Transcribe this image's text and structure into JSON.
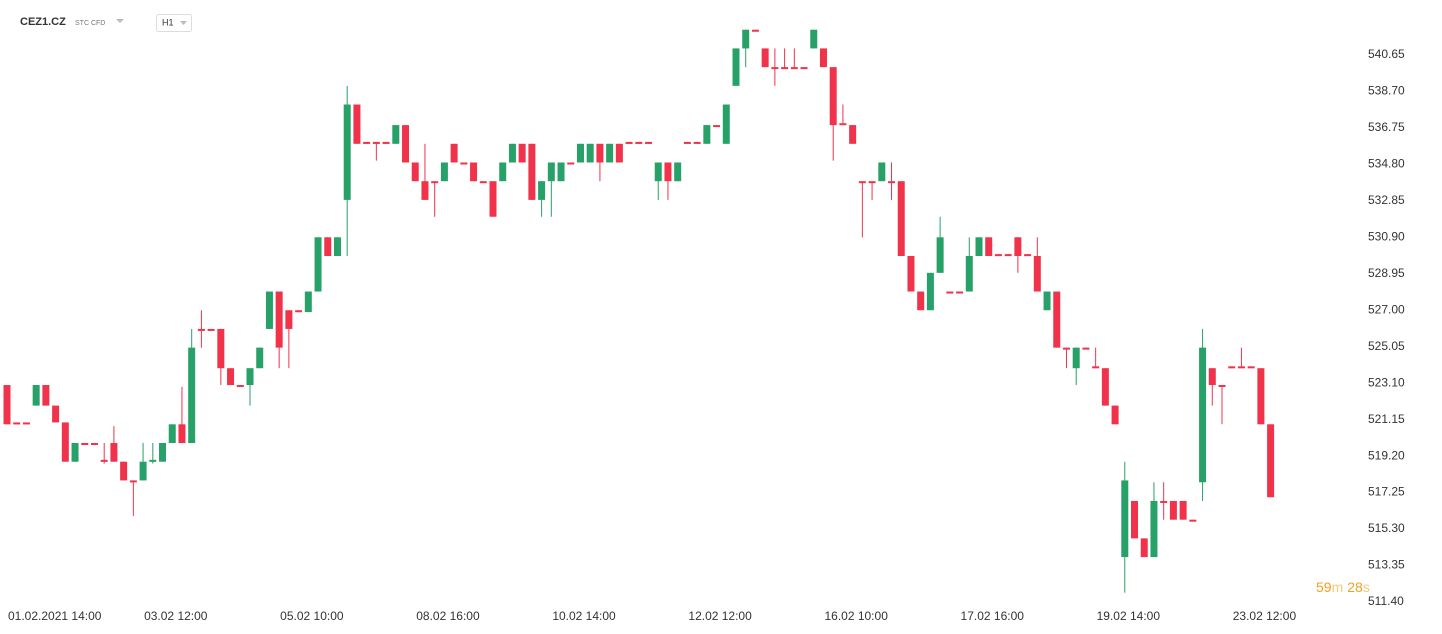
{
  "header": {
    "symbol": "CEZ1.CZ",
    "instrument": "STC CFD",
    "interval": "H1"
  },
  "countdown": {
    "minutes": "59",
    "minutes_unit": "m",
    "seconds": "28",
    "seconds_unit": "s"
  },
  "chart_data": {
    "type": "candlestick",
    "up_color": "#27a168",
    "down_color": "#f0334b",
    "grid": false,
    "ylim": [
      510.97,
      542.52
    ],
    "yticks": [
      {
        "value": 511.4,
        "label": "511.40"
      },
      513.35,
      {
        "value": 515.3,
        "label": "515.30"
      },
      517.25,
      {
        "value": 519.2,
        "label": "519.20"
      },
      521.15,
      {
        "value": 523.1,
        "label": "523.10"
      },
      525.05,
      {
        "value": 527,
        "label": "527.00"
      },
      528.95,
      {
        "value": 530.9,
        "label": "530.90"
      },
      532.85,
      {
        "value": 534.8,
        "label": "534.80"
      },
      536.75,
      {
        "value": 538.7,
        "label": "538.70"
      },
      540.65
    ],
    "categories": [
      "01.02.2021 14:00",
      null,
      null,
      null,
      null,
      null,
      null,
      null,
      null,
      null,
      null,
      null,
      null,
      null,
      "03.02 12:00",
      null,
      null,
      null,
      null,
      null,
      null,
      null,
      null,
      null,
      null,
      null,
      null,
      null,
      "05.02 10:00",
      null,
      null,
      null,
      null,
      null,
      null,
      null,
      null,
      null,
      null,
      null,
      null,
      null,
      "08.02 16:00",
      null,
      null,
      null,
      null,
      null,
      null,
      null,
      null,
      null,
      null,
      null,
      null,
      null,
      "10.02 14:00",
      null,
      null,
      null,
      null,
      null,
      null,
      null,
      null,
      null,
      null,
      null,
      null,
      null,
      "12.02 12:00",
      null,
      null,
      null,
      null,
      null,
      null,
      null,
      null,
      null,
      null,
      null,
      null,
      null,
      "16.02 10:00",
      null,
      null,
      null,
      null,
      null,
      null,
      null,
      null,
      null,
      null,
      null,
      null,
      null,
      "17.02 16:00",
      null,
      null,
      null,
      null,
      null,
      null,
      null,
      null,
      null,
      null,
      null,
      null,
      null,
      "19.02 14:00",
      null,
      null,
      null,
      null,
      null,
      null,
      null,
      null,
      null,
      null,
      null,
      null,
      null,
      "23.02 12:00",
      null,
      null,
      null,
      null
    ],
    "open": [
      523.0,
      521.0,
      521.0,
      521.9,
      523.0,
      521.9,
      521.0,
      518.9,
      519.9,
      519.9,
      519.0,
      519.9,
      518.9,
      517.9,
      517.9,
      518.9,
      518.9,
      519.9,
      520.9,
      519.9,
      526.0,
      526.0,
      526.0,
      523.9,
      523.0,
      523.0,
      523.9,
      526.0,
      528.0,
      527.0,
      527.0,
      526.9,
      528.0,
      530.9,
      529.9,
      532.9,
      538.0,
      536.0,
      536.0,
      536.0,
      535.9,
      536.9,
      534.9,
      533.9,
      533.9,
      533.9,
      535.9,
      534.9,
      534.9,
      533.9,
      533.9,
      533.9,
      534.9,
      535.9,
      535.9,
      532.9,
      533.9,
      533.9,
      534.9,
      534.9,
      534.9,
      535.9,
      534.9,
      535.9,
      536.0,
      536.0,
      536.0,
      533.9,
      534.9,
      533.9,
      536.0,
      536.0,
      535.9,
      536.9,
      535.9,
      539.0,
      541.0,
      542.0,
      541.0,
      540.0,
      540.0,
      540.0,
      540.0,
      541.0,
      541.0,
      540.0,
      537.0,
      536.9,
      533.9,
      533.9,
      533.9,
      533.9,
      533.9,
      529.9,
      528.0,
      527.0,
      529.0,
      528.0,
      528.0,
      528.0,
      529.9,
      530.9,
      530.0,
      530.0,
      530.9,
      530.0,
      529.9,
      527.0,
      528.0,
      525.0,
      523.9,
      525.0,
      524.0,
      523.9,
      521.9,
      513.8,
      516.8,
      514.8,
      513.8,
      516.8,
      516.8,
      516.8,
      515.8,
      517.8,
      523.9,
      523.0,
      524.0,
      524.0,
      524.0,
      523.9,
      520.9
    ],
    "high": [
      523.0,
      521.0,
      521.0,
      523.0,
      523.0,
      521.9,
      521.0,
      519.9,
      519.9,
      519.9,
      519.9,
      520.8,
      518.9,
      517.9,
      519.9,
      519.9,
      519.9,
      520.9,
      522.9,
      526.0,
      527.0,
      526.0,
      526.0,
      523.9,
      523.0,
      523.9,
      525.0,
      528.0,
      528.0,
      527.0,
      527.0,
      528.0,
      530.9,
      530.9,
      530.9,
      539.0,
      538.0,
      536.0,
      536.0,
      536.0,
      536.9,
      536.9,
      534.9,
      535.9,
      533.9,
      534.9,
      535.9,
      534.9,
      534.9,
      533.9,
      533.9,
      534.9,
      535.9,
      535.9,
      535.9,
      533.9,
      534.9,
      534.9,
      534.9,
      535.9,
      535.9,
      535.9,
      535.9,
      535.9,
      536.0,
      536.0,
      536.0,
      534.9,
      534.9,
      534.9,
      536.0,
      536.0,
      536.9,
      536.9,
      538.0,
      541.0,
      542.0,
      542.0,
      541.0,
      541.0,
      541.0,
      541.0,
      540.0,
      542.0,
      541.0,
      540.0,
      538.0,
      536.9,
      533.9,
      533.9,
      534.9,
      534.9,
      533.9,
      529.9,
      528.0,
      529.0,
      532.0,
      528.0,
      528.0,
      530.9,
      530.9,
      530.9,
      530.0,
      530.0,
      530.9,
      530.0,
      530.9,
      528.0,
      528.0,
      525.0,
      525.0,
      525.0,
      525.0,
      523.9,
      521.9,
      518.9,
      516.8,
      514.8,
      517.8,
      517.8,
      516.8,
      516.8,
      515.8,
      526.0,
      523.9,
      523.0,
      524.0,
      525.0,
      524.0,
      523.9,
      520.9
    ],
    "low": [
      520.9,
      520.9,
      520.9,
      521.9,
      521.9,
      521.0,
      518.9,
      518.9,
      519.8,
      519.8,
      518.8,
      518.9,
      517.9,
      516.0,
      517.9,
      518.8,
      518.9,
      519.9,
      519.9,
      519.9,
      525.0,
      525.9,
      523.0,
      523.0,
      522.9,
      521.9,
      523.9,
      526.0,
      523.9,
      523.9,
      526.9,
      526.9,
      528.0,
      529.9,
      529.9,
      529.9,
      535.9,
      535.9,
      535.0,
      535.9,
      535.9,
      534.9,
      533.9,
      532.9,
      532.0,
      533.9,
      534.9,
      534.8,
      533.9,
      533.8,
      532.0,
      533.9,
      534.9,
      534.9,
      532.9,
      532.0,
      532.0,
      533.9,
      534.8,
      534.9,
      534.9,
      533.9,
      534.9,
      534.9,
      535.9,
      535.9,
      535.9,
      532.9,
      532.9,
      533.9,
      535.9,
      535.9,
      535.9,
      536.8,
      535.9,
      539.0,
      540.0,
      541.9,
      540.0,
      539.0,
      539.9,
      539.9,
      539.9,
      541.0,
      540.0,
      535.0,
      536.9,
      535.9,
      530.9,
      532.9,
      533.9,
      532.9,
      529.9,
      528.0,
      527.0,
      527.0,
      529.0,
      527.9,
      527.9,
      528.0,
      529.9,
      529.9,
      529.9,
      529.9,
      529.0,
      529.9,
      528.0,
      527.0,
      525.0,
      523.9,
      523.0,
      524.9,
      523.9,
      521.9,
      520.9,
      511.9,
      514.8,
      513.8,
      513.8,
      515.8,
      515.8,
      515.8,
      515.7,
      516.8,
      521.9,
      520.9,
      523.9,
      523.9,
      523.9,
      520.9,
      517.0
    ],
    "close": [
      520.9,
      520.9,
      520.9,
      523.0,
      521.9,
      521.0,
      518.9,
      519.9,
      519.8,
      519.8,
      518.9,
      518.9,
      517.9,
      517.8,
      518.9,
      519.0,
      519.9,
      520.9,
      519.9,
      525.0,
      525.9,
      525.9,
      523.9,
      523.0,
      522.9,
      523.9,
      525.0,
      528.0,
      525.0,
      526.0,
      526.9,
      528.0,
      530.9,
      529.9,
      530.9,
      538.0,
      535.9,
      535.9,
      535.9,
      535.9,
      536.9,
      534.9,
      533.9,
      532.9,
      533.8,
      534.9,
      534.9,
      534.8,
      533.9,
      533.8,
      532.0,
      534.9,
      535.9,
      534.9,
      532.9,
      533.9,
      534.9,
      534.9,
      534.8,
      535.9,
      535.9,
      534.9,
      535.9,
      534.9,
      535.9,
      535.9,
      535.9,
      534.9,
      533.9,
      534.9,
      535.9,
      535.9,
      536.9,
      536.8,
      538.0,
      541.0,
      542.0,
      541.9,
      540.0,
      539.9,
      539.9,
      539.9,
      539.9,
      542.0,
      540.0,
      536.9,
      536.9,
      535.9,
      533.8,
      533.8,
      534.9,
      533.8,
      529.9,
      528.0,
      527.0,
      529.0,
      530.9,
      527.9,
      527.9,
      529.9,
      530.9,
      529.9,
      529.9,
      529.9,
      529.9,
      529.9,
      528.0,
      528.0,
      525.0,
      524.9,
      525.0,
      524.9,
      523.9,
      521.9,
      520.9,
      517.9,
      514.8,
      513.8,
      516.8,
      516.7,
      515.8,
      515.8,
      515.7,
      525.0,
      523.0,
      522.9,
      523.9,
      523.9,
      523.9,
      520.9,
      517.0
    ]
  }
}
